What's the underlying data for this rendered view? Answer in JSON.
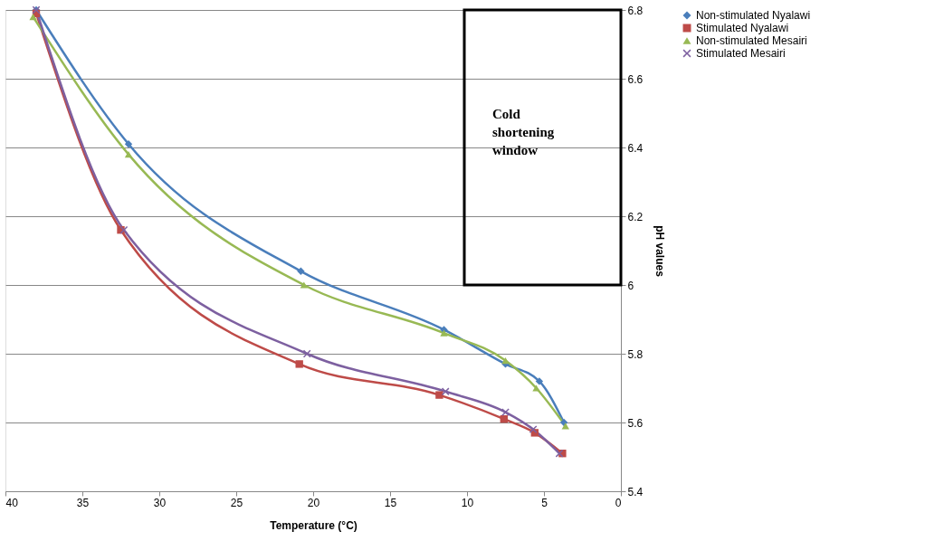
{
  "chart_data": {
    "type": "line",
    "xlabel": "Temperature (°C)",
    "ylabel": "pH values",
    "xlim": [
      40,
      0
    ],
    "xticks": [
      40,
      35,
      30,
      25,
      20,
      15,
      10,
      5,
      0
    ],
    "ylim": [
      5.4,
      6.8
    ],
    "yticks": [
      5.4,
      5.6,
      5.8,
      6,
      6.2,
      6.4,
      6.6,
      6.8
    ],
    "grid": "y",
    "legend": "right",
    "annotations": [
      "Cold shortening window"
    ],
    "series": [
      {
        "name": "Non-stimulated Nyalawi",
        "color": "#4a7ebb",
        "marker": "diamond",
        "x": [
          38,
          32,
          20.8,
          11.5,
          7.5,
          5.3,
          3.7
        ],
        "values": [
          6.8,
          6.41,
          6.04,
          5.87,
          5.77,
          5.72,
          5.6
        ]
      },
      {
        "name": "Stimulated Nyalawi",
        "color": "#be4b48",
        "marker": "square",
        "x": [
          38,
          32.5,
          20.9,
          11.8,
          7.6,
          5.6,
          3.8
        ],
        "values": [
          6.79,
          6.16,
          5.77,
          5.68,
          5.61,
          5.57,
          5.51
        ]
      },
      {
        "name": "Non-stimulated Mesairi",
        "color": "#98b954",
        "marker": "triangle",
        "x": [
          38.2,
          32,
          20.6,
          11.5,
          7.5,
          5.5,
          3.6
        ],
        "values": [
          6.78,
          6.38,
          6.0,
          5.86,
          5.78,
          5.7,
          5.59
        ]
      },
      {
        "name": "Stimulated Mesairi",
        "color": "#7d60a0",
        "marker": "cross",
        "x": [
          38,
          32.3,
          20.4,
          11.4,
          7.5,
          5.7,
          4
        ],
        "values": [
          6.8,
          6.16,
          5.8,
          5.69,
          5.63,
          5.58,
          5.51
        ]
      }
    ]
  }
}
